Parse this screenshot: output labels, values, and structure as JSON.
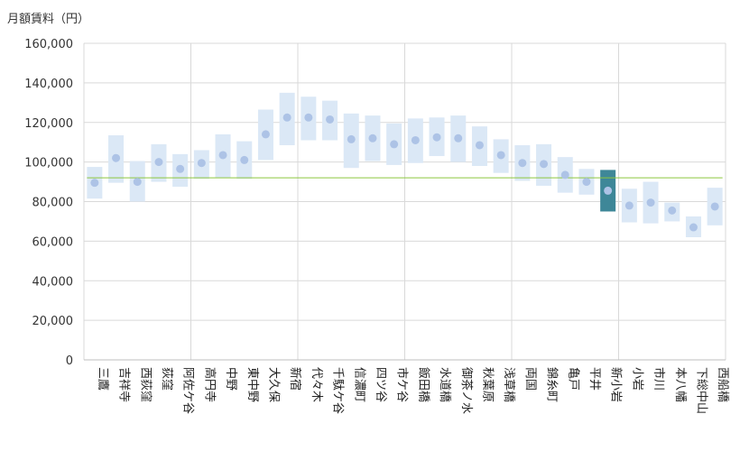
{
  "chart_data": {
    "type": "range_dot",
    "ylabel": "月額賃料（円）",
    "ylim": [
      0,
      160000
    ],
    "yticks": [
      0,
      20000,
      40000,
      60000,
      80000,
      100000,
      120000,
      140000,
      160000
    ],
    "ytick_labels": [
      "0",
      "20,000",
      "40,000",
      "60,000",
      "80,000",
      "100,000",
      "120,000",
      "140,000",
      "160,000"
    ],
    "categories": [
      "三鷹",
      "吉祥寺",
      "西荻窪",
      "荻窪",
      "阿佐ケ谷",
      "高円寺",
      "中野",
      "東中野",
      "大久保",
      "新宿",
      "代々木",
      "千駄ケ谷",
      "信濃町",
      "四ツ谷",
      "市ケ谷",
      "飯田橋",
      "水道橋",
      "御茶ノ水",
      "秋葉原",
      "浅草橋",
      "両国",
      "錦糸町",
      "亀戸",
      "平井",
      "新小岩",
      "小岩",
      "市川",
      "本八幡",
      "下総中山",
      "西船橋"
    ],
    "range_low": [
      81500,
      89500,
      80000,
      90000,
      87500,
      91500,
      92000,
      91500,
      101000,
      108500,
      111000,
      111000,
      97000,
      100500,
      98500,
      99500,
      103000,
      100000,
      98000,
      94500,
      90500,
      88000,
      84500,
      83500,
      75000,
      69500,
      69000,
      70000,
      62000,
      68000
    ],
    "range_high": [
      97500,
      113500,
      100500,
      109000,
      104000,
      106000,
      114000,
      110500,
      126500,
      135000,
      133000,
      131000,
      124500,
      123500,
      119500,
      122000,
      122500,
      123500,
      118000,
      111500,
      108500,
      109000,
      102500,
      96500,
      96000,
      86500,
      90000,
      79500,
      72500,
      87000
    ],
    "values": [
      89500,
      102000,
      90000,
      100000,
      96500,
      99500,
      103500,
      101000,
      114000,
      122500,
      122500,
      121500,
      111500,
      112000,
      109000,
      111000,
      112500,
      112000,
      108500,
      103500,
      99500,
      99000,
      93500,
      90000,
      85500,
      78000,
      79500,
      75500,
      67000,
      77500
    ],
    "reference_line": 92000,
    "highlight_category": "新小岩",
    "group_separators_after": [
      "阿佐ケ谷",
      "新宿",
      "市ケ谷",
      "浅草橋",
      "新小岩"
    ],
    "colors": {
      "range": "#dbe8f6",
      "dot": "#adc3e6",
      "highlight": "#3e8798",
      "reference": "#8cc63f",
      "grid": "#d9d9d9"
    }
  }
}
